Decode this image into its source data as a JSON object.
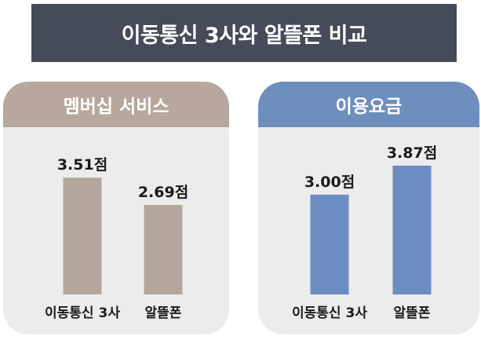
{
  "title": "이동통신 3사와 알뜰폰 비교",
  "colors": {
    "title_bg": "#464b59",
    "membership_header": "#b7a79c",
    "membership_bar": "#b3a69b",
    "fee_header": "#6e8fbd",
    "fee_bar": "#6c8dc1",
    "panel_bg": "#ececec"
  },
  "chart_data": [
    {
      "type": "bar",
      "title": "멤버십 서비스",
      "categories": [
        "이동통신 3사",
        "알뜰폰"
      ],
      "values": [
        3.51,
        2.69
      ],
      "value_labels": [
        "3.51점",
        "2.69점"
      ],
      "xlabel": "",
      "ylabel": "",
      "ylim": [
        0,
        4.2
      ]
    },
    {
      "type": "bar",
      "title": "이용요금",
      "categories": [
        "이동통신 3사",
        "알뜰폰"
      ],
      "values": [
        3.0,
        3.87
      ],
      "value_labels": [
        "3.00점",
        "3.87점"
      ],
      "xlabel": "",
      "ylabel": "",
      "ylim": [
        0,
        4.2
      ]
    }
  ]
}
